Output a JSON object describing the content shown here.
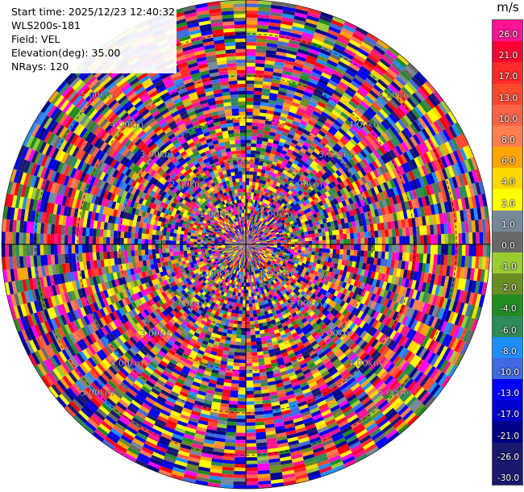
{
  "info": {
    "start_time": "Start time: 2025/12/23 12:40:32",
    "station": "WLS200s-181",
    "field": "Field: VEL",
    "elevation": "Elevation(deg): 35.00",
    "nrays": "NRays: 120"
  },
  "colorbar": {
    "unit": "m/s",
    "bins": [
      {
        "label": "26.0",
        "color": "#ff1493"
      },
      {
        "label": "21.0",
        "color": "#ff0033"
      },
      {
        "label": "17.0",
        "color": "#ff2a2a"
      },
      {
        "label": "13.0",
        "color": "#ff4a2e"
      },
      {
        "label": "10.0",
        "color": "#ff6347"
      },
      {
        "label": "8.0",
        "color": "#ff7f50"
      },
      {
        "label": "6.0",
        "color": "#ffa500"
      },
      {
        "label": "4.0",
        "color": "#ffd700"
      },
      {
        "label": "2.0",
        "color": "#ffff00"
      },
      {
        "label": "1.0",
        "color": "#778899"
      },
      {
        "label": "0.0",
        "color": "#696969"
      },
      {
        "label": "-1.0",
        "color": "#9acd32"
      },
      {
        "label": "-2.0",
        "color": "#6b8e23"
      },
      {
        "label": "-4.0",
        "color": "#228b22"
      },
      {
        "label": "-6.0",
        "color": "#2e8b57"
      },
      {
        "label": "-8.0",
        "color": "#1e90ff"
      },
      {
        "label": "-10.0",
        "color": "#4169e1"
      },
      {
        "label": "-13.0",
        "color": "#0000ff"
      },
      {
        "label": "-17.0",
        "color": "#0000cd"
      },
      {
        "label": "-21.0",
        "color": "#00008b"
      },
      {
        "label": "-26.0",
        "color": "#191970"
      },
      {
        "label": "-30.0",
        "color": "#191970"
      }
    ]
  },
  "chart_data": {
    "type": "heatmap",
    "projection": "polar-ppi",
    "field": "VEL",
    "nrays": 120,
    "range_unit": "km",
    "range_ring_labels": [
      "1.00km",
      "2.00km",
      "3.00km",
      "4.00km",
      "5.00km"
    ],
    "max_range_km": 5.8,
    "legend_placement": "right",
    "note": "Dense high-variance velocity field; cell values noisy across the full color scale"
  }
}
